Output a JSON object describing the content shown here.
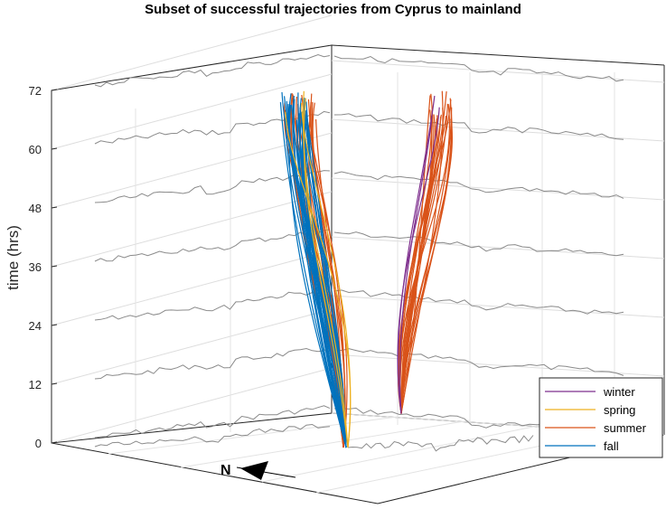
{
  "chart_data": {
    "type": "line",
    "title": "Subset of successful trajectories from Cyprus to mainland",
    "zlabel": "time (hrs)",
    "zlim": [
      0,
      72
    ],
    "z_ticks": [
      0,
      12,
      24,
      36,
      48,
      60,
      72
    ],
    "grid": true,
    "view": "3d",
    "legend_position": "bottom-right",
    "north_label": "N",
    "series": [
      {
        "name": "winter",
        "color": "#7E2F8E",
        "count": 3
      },
      {
        "name": "spring",
        "color": "#EDB120",
        "count": 4
      },
      {
        "name": "summer",
        "color": "#D95319",
        "count": 40
      },
      {
        "name": "fall",
        "color": "#0072BD",
        "count": 30
      }
    ]
  }
}
